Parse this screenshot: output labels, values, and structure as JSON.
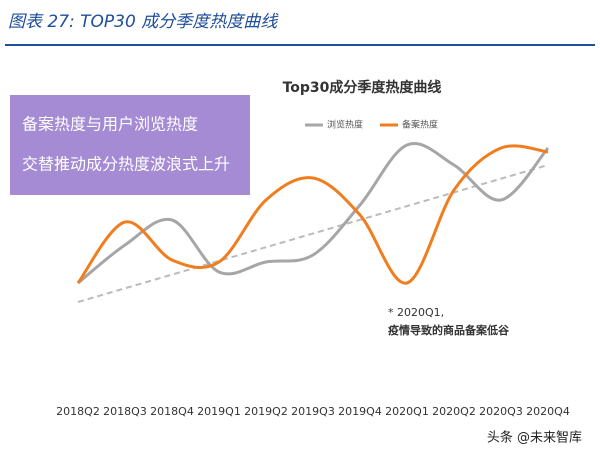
{
  "header": {
    "title": "图表 27:  TOP30 成分季度热度曲线"
  },
  "chart_data": {
    "type": "line",
    "title": "Top30成分季度热度曲线",
    "categories": [
      "2018Q2",
      "2018Q3",
      "2018Q4",
      "2019Q1",
      "2019Q2",
      "2019Q3",
      "2019Q4",
      "2020Q1",
      "2020Q2",
      "2020Q3",
      "2020Q4"
    ],
    "series": [
      {
        "name": "浏览热度",
        "color": "#a6a6a6",
        "values": [
          23.5,
          42.5,
          55,
          29,
          34,
          37.5,
          62.5,
          92.5,
          82.5,
          65,
          91
        ]
      },
      {
        "name": "备案热度",
        "color": "#f07d1e",
        "values": [
          23.5,
          54,
          35,
          34,
          65,
          76,
          57.5,
          23.5,
          70,
          91,
          89
        ]
      }
    ],
    "ylim": [
      0,
      100
    ],
    "callout": [
      "备案热度与用户浏览热度",
      "交替推动成分热度波浪式上升"
    ],
    "annotation": [
      "* 2020Q1,",
      "疫情导致的商品备案低谷"
    ]
  },
  "footer": "头条 @未来智库"
}
